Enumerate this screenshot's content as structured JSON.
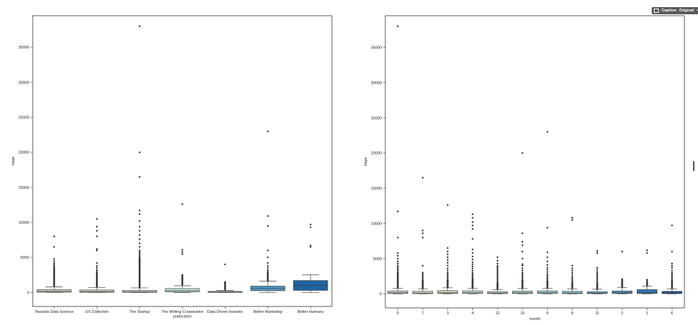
{
  "toolbar": {
    "caption_label": "Caption",
    "original_label": "Original",
    "more_label": "•••"
  },
  "chart_data": [
    {
      "type": "box",
      "title": "",
      "xlabel": "",
      "ylabel": "claps",
      "ylim": [
        -2000,
        39500
      ],
      "yticks": [
        0,
        5000,
        10000,
        15000,
        20000,
        25000,
        30000,
        35000
      ],
      "categories": [
        "Towards Data Science",
        "UX Collective",
        "The Startup",
        "The Writing Cooperative publication",
        "Data Driven Investor",
        "Better Marketing",
        "Better Humans"
      ],
      "boxes": [
        {
          "label": "Towards Data Science",
          "q1": 40,
          "median": 150,
          "q3": 400,
          "whislo": 0,
          "whishi": 800,
          "color": "#d8d7c8",
          "outliers": [
            900,
            1000,
            1100,
            1200,
            1300,
            1400,
            1500,
            1600,
            1700,
            1800,
            1900,
            2000,
            2100,
            2200,
            2300,
            2400,
            2500,
            2600,
            2700,
            2800,
            2900,
            3000,
            3100,
            3200,
            3300,
            3400,
            3500,
            3600,
            3800,
            4000,
            4200,
            4500,
            4800,
            6500,
            8000
          ]
        },
        {
          "label": "UX Collective",
          "q1": 30,
          "median": 120,
          "q3": 350,
          "whislo": 0,
          "whishi": 700,
          "color": "#dad6b6",
          "outliers": [
            800,
            900,
            1000,
            1100,
            1200,
            1300,
            1400,
            1500,
            1600,
            1700,
            1800,
            1900,
            2000,
            2100,
            2200,
            2300,
            2400,
            2500,
            2600,
            2700,
            2800,
            3000,
            3200,
            3500,
            3800,
            4200,
            6000,
            6200,
            8000,
            8800,
            9400,
            10500
          ]
        },
        {
          "label": "The Startup",
          "q1": 30,
          "median": 100,
          "q3": 300,
          "whislo": 0,
          "whishi": 650,
          "color": "#d0e3cf",
          "outliers": [
            700,
            800,
            900,
            1000,
            1100,
            1200,
            1300,
            1400,
            1500,
            1600,
            1700,
            1800,
            1900,
            2000,
            2100,
            2200,
            2300,
            2400,
            2500,
            2600,
            2700,
            2800,
            2900,
            3000,
            3100,
            3200,
            3300,
            3400,
            3500,
            3600,
            3700,
            3800,
            3900,
            4000,
            4100,
            4200,
            4300,
            4400,
            4500,
            4600,
            4700,
            4800,
            4900,
            5000,
            5200,
            5400,
            5600,
            5800,
            6000,
            6500,
            7000,
            7600,
            8200,
            8800,
            9400,
            10200,
            11200,
            11700,
            16500,
            20000,
            38000
          ]
        },
        {
          "label": "The Writing Cooperative publication",
          "q1": 80,
          "median": 250,
          "q3": 550,
          "whislo": 0,
          "whishi": 950,
          "color": "#c3e7d3",
          "outliers": [
            1100,
            1200,
            1300,
            1400,
            1500,
            1600,
            1700,
            1800,
            1900,
            2000,
            2100,
            2200,
            2300,
            2400,
            2500,
            5500,
            5800,
            6100,
            12600
          ]
        },
        {
          "label": "Data Driven Investor",
          "q1": 10,
          "median": 50,
          "q3": 150,
          "whislo": 0,
          "whishi": 300,
          "color": "#8fd0d8",
          "outliers": [
            400,
            500,
            600,
            700,
            800,
            900,
            1000,
            1100,
            1200,
            1300,
            1400,
            1500,
            4000
          ]
        },
        {
          "label": "Better Marketing",
          "q1": 250,
          "median": 600,
          "q3": 900,
          "whislo": 0,
          "whishi": 1600,
          "color": "#4e96c4",
          "outliers": [
            1700,
            1800,
            1900,
            2000,
            2100,
            2200,
            2300,
            2400,
            2500,
            2600,
            2700,
            2800,
            3000,
            3200,
            3500,
            3800,
            4200,
            5000,
            6000,
            9500,
            10900,
            23000
          ]
        },
        {
          "label": "Better Humans",
          "q1": 300,
          "median": 1000,
          "q3": 1700,
          "whislo": 0,
          "whishi": 2500,
          "color": "#1f63a4",
          "outliers": [
            6500,
            6700,
            9300,
            9700
          ]
        }
      ]
    },
    {
      "type": "box",
      "title": "",
      "xlabel": "month",
      "ylabel": "claps",
      "ylim": [
        -2000,
        39500
      ],
      "yticks": [
        0,
        5000,
        10000,
        15000,
        20000,
        25000,
        30000,
        35000
      ],
      "categories": [
        "5",
        "7",
        "3",
        "4",
        "12",
        "10",
        "9",
        "8",
        "11",
        "2",
        "1",
        "6"
      ],
      "boxes": [
        {
          "label": "5",
          "q1": 40,
          "median": 150,
          "q3": 400,
          "whislo": 0,
          "whishi": 800,
          "color": "#dcdcd4",
          "outliers": [
            900,
            1000,
            1100,
            1200,
            1300,
            1400,
            1500,
            1600,
            1700,
            1800,
            1900,
            2000,
            2100,
            2200,
            2300,
            2400,
            2500,
            2600,
            2700,
            2800,
            2900,
            3000,
            3200,
            3400,
            3600,
            3800,
            4000,
            4300,
            4600,
            5000,
            5400,
            5800,
            8000,
            11700,
            38000
          ]
        },
        {
          "label": "7",
          "q1": 30,
          "median": 120,
          "q3": 350,
          "whislo": 0,
          "whishi": 700,
          "color": "#dcdcc8",
          "outliers": [
            800,
            900,
            1000,
            1100,
            1200,
            1300,
            1400,
            1500,
            1600,
            1700,
            1800,
            1900,
            2000,
            2200,
            2400,
            2600,
            2800,
            3000,
            4000,
            8000,
            8600,
            9000,
            16500
          ]
        },
        {
          "label": "3",
          "q1": 50,
          "median": 200,
          "q3": 450,
          "whislo": 0,
          "whishi": 850,
          "color": "#d9e4c9",
          "outliers": [
            900,
            1000,
            1100,
            1200,
            1300,
            1400,
            1500,
            1600,
            1700,
            1800,
            1900,
            2000,
            2200,
            2400,
            2600,
            2800,
            3000,
            3300,
            3600,
            4000,
            4400,
            4800,
            5200,
            5600,
            6000,
            6500,
            12600
          ]
        },
        {
          "label": "4",
          "q1": 40,
          "median": 180,
          "q3": 420,
          "whislo": 0,
          "whishi": 800,
          "color": "#d2e8d0",
          "outliers": [
            900,
            1000,
            1100,
            1200,
            1300,
            1400,
            1500,
            1600,
            1700,
            1800,
            1900,
            2000,
            2100,
            2200,
            2400,
            2600,
            2800,
            3000,
            3300,
            3600,
            3900,
            4200,
            4500,
            4900,
            5300,
            5800,
            6300,
            7800,
            9200,
            9700,
            10200,
            10800,
            11300
          ]
        },
        {
          "label": "12",
          "q1": 30,
          "median": 120,
          "q3": 300,
          "whislo": 0,
          "whishi": 600,
          "color": "#c6e6d4",
          "outliers": [
            700,
            800,
            900,
            1000,
            1100,
            1200,
            1300,
            1400,
            1500,
            1600,
            1800,
            2000,
            2200,
            2400,
            2600,
            2800,
            3000,
            3200,
            3400,
            3600,
            3800,
            4000,
            4300,
            4700,
            5200
          ]
        },
        {
          "label": "10",
          "q1": 40,
          "median": 150,
          "q3": 380,
          "whislo": 0,
          "whishi": 750,
          "color": "#b6e2d6",
          "outliers": [
            800,
            900,
            1000,
            1100,
            1200,
            1300,
            1400,
            1500,
            1600,
            1700,
            1800,
            1900,
            2000,
            2200,
            2400,
            2600,
            2800,
            3000,
            3300,
            3600,
            4000,
            4200,
            5000,
            6000,
            6900,
            7400,
            8600,
            20000
          ]
        },
        {
          "label": "9",
          "q1": 40,
          "median": 150,
          "q3": 400,
          "whislo": 0,
          "whishi": 800,
          "color": "#a6dcd8",
          "outliers": [
            900,
            1000,
            1100,
            1200,
            1300,
            1400,
            1500,
            1600,
            1700,
            1800,
            2000,
            2200,
            2400,
            2600,
            2800,
            3100,
            3400,
            3700,
            4100,
            4600,
            5200,
            5900,
            9400,
            23000
          ]
        },
        {
          "label": "8",
          "q1": 30,
          "median": 120,
          "q3": 350,
          "whislo": 0,
          "whishi": 700,
          "color": "#8dccd8",
          "outliers": [
            800,
            900,
            1000,
            1100,
            1200,
            1300,
            1400,
            1500,
            1600,
            1800,
            2000,
            2200,
            2400,
            2700,
            3000,
            3300,
            3600,
            4000,
            10500,
            10800
          ]
        },
        {
          "label": "11",
          "q1": 30,
          "median": 100,
          "q3": 300,
          "whislo": 0,
          "whishi": 650,
          "color": "#6fb6d0",
          "outliers": [
            700,
            800,
            900,
            1000,
            1100,
            1200,
            1300,
            1400,
            1500,
            1700,
            1900,
            2100,
            2300,
            2500,
            2700,
            2900,
            3100,
            3400,
            3700,
            5800,
            6100
          ]
        },
        {
          "label": "2",
          "q1": 40,
          "median": 150,
          "q3": 400,
          "whislo": 0,
          "whishi": 900,
          "color": "#4f9ac6",
          "outliers": [
            1000,
            1100,
            1200,
            1300,
            1400,
            1500,
            1600,
            1700,
            1800,
            1900,
            2000,
            2100,
            6000
          ]
        },
        {
          "label": "1",
          "q1": 50,
          "median": 200,
          "q3": 600,
          "whislo": 0,
          "whishi": 1100,
          "color": "#3079b4",
          "outliers": [
            1200,
            1300,
            1400,
            1500,
            1600,
            1700,
            1900,
            2000,
            5800,
            6200
          ]
        },
        {
          "label": "6",
          "q1": 30,
          "median": 130,
          "q3": 350,
          "whislo": 0,
          "whishi": 700,
          "color": "#1c5a9c",
          "outliers": [
            800,
            900,
            1000,
            1100,
            1200,
            1300,
            1400,
            1500,
            1600,
            1700,
            1800,
            1900,
            2000,
            2200,
            2400,
            2600,
            2800,
            3000,
            3300,
            3700,
            4000,
            4300,
            6000,
            9700
          ]
        }
      ]
    }
  ]
}
